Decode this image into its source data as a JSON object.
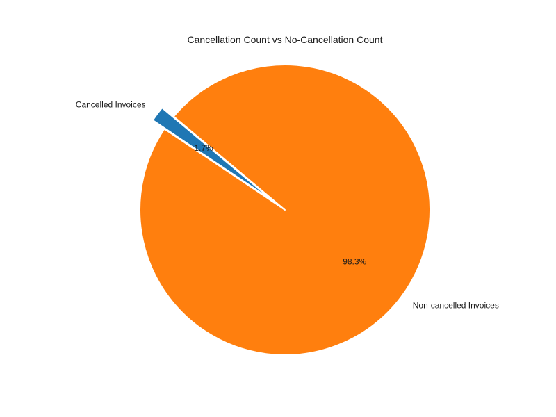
{
  "chart_data": {
    "type": "pie",
    "title": "Cancellation Count vs No-Cancellation Count",
    "start_angle_deg": 140,
    "slices": [
      {
        "label": "Cancelled Invoices",
        "value": 1.7,
        "pct_label": "1.7%",
        "color": "#1f77b4",
        "explode": true
      },
      {
        "label": "Non-cancelled Invoices",
        "value": 98.3,
        "pct_label": "98.3%",
        "color": "#ff7f0e",
        "explode": false
      }
    ]
  }
}
